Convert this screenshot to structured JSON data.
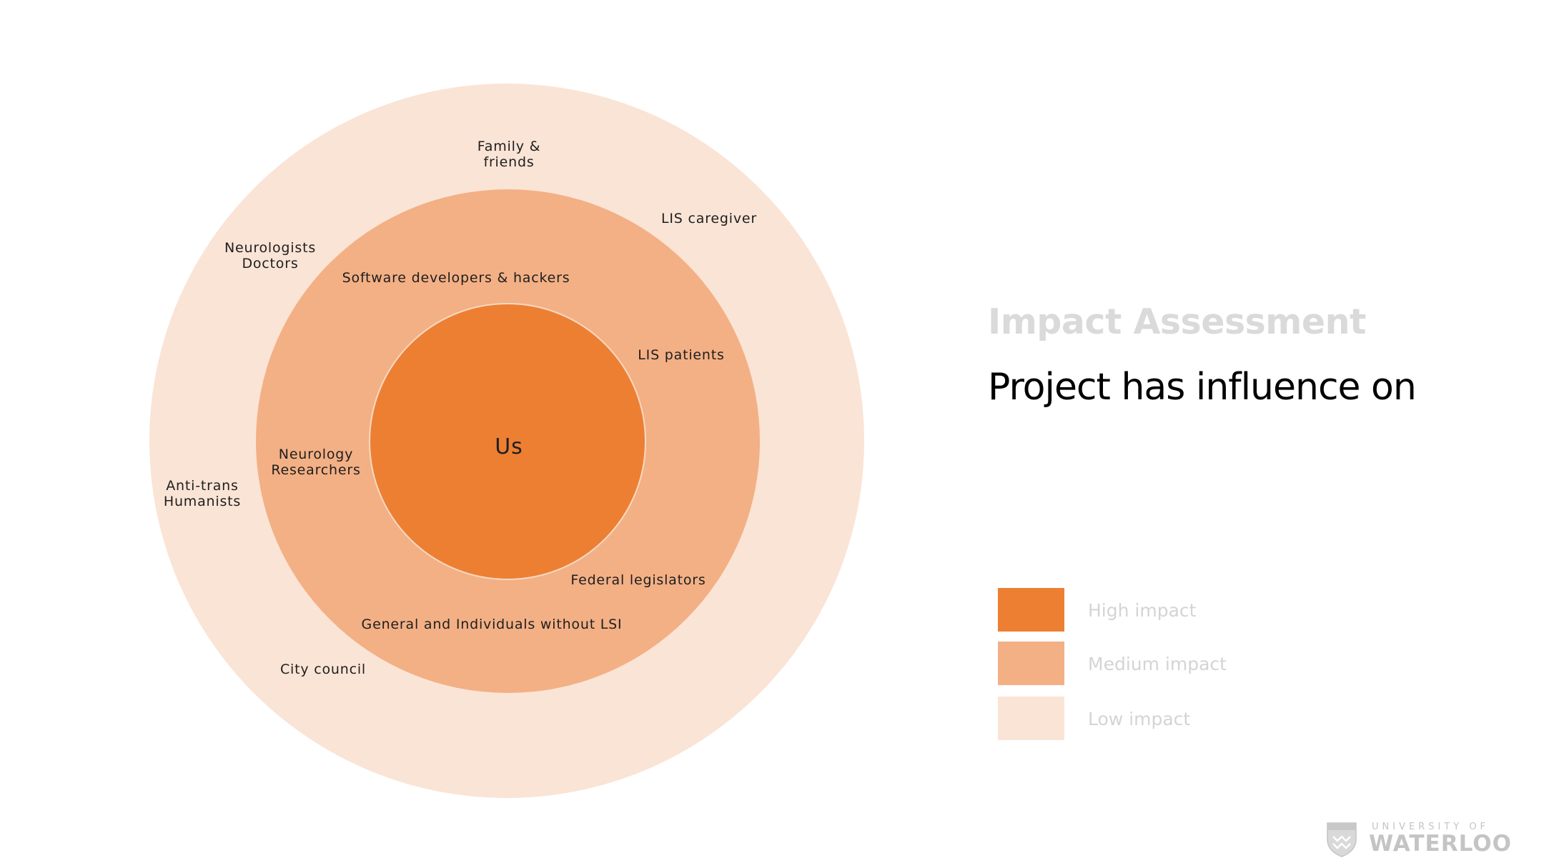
{
  "rings": {
    "outer_color": "#fae4d6",
    "middle_color": "#f3b085",
    "inner_color": "#ed7f33",
    "center_label": "Us"
  },
  "stakeholders": {
    "family_friends": "Family &\nfriends",
    "lis_caregiver": "LIS caregiver",
    "neurologists_doctors": "Neurologists\nDoctors",
    "software_developers": "Software developers & hackers",
    "lis_patients": "LIS patients",
    "neurology_researchers": "Neurology\nResearchers",
    "anti_trans_humanists": "Anti-trans\nHumanists",
    "federal_legislators": "Federal legislators",
    "general_individuals": "General and Individuals without LSI",
    "city_council": "City council"
  },
  "header": {
    "title": "Impact Assessment",
    "subtitle": "Project has influence on"
  },
  "legend": [
    {
      "label": "High impact",
      "color": "#ed7f33"
    },
    {
      "label": "Medium impact",
      "color": "#f3b085"
    },
    {
      "label": "Low impact",
      "color": "#fae4d6"
    }
  ],
  "logo": {
    "line1": "UNIVERSITY OF",
    "line2": "WATERLOO"
  }
}
